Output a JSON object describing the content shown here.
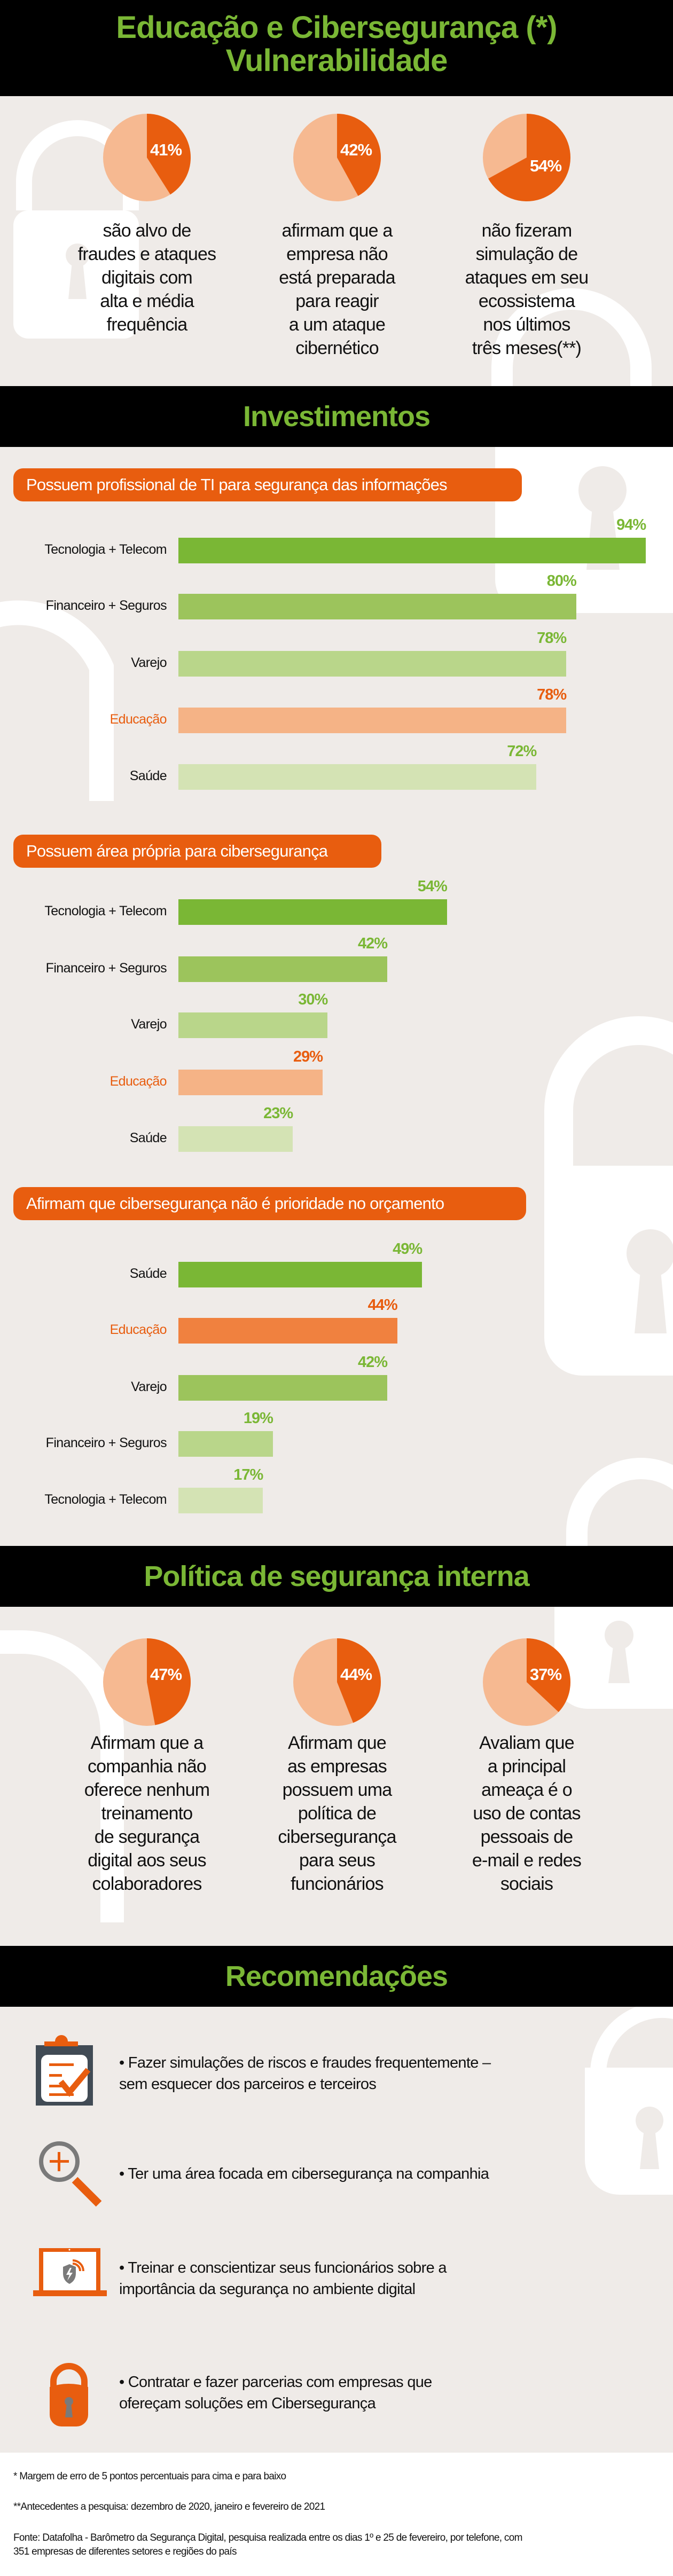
{
  "header": {
    "title_line1": "Educação e Cibersegurança (*)",
    "title_line2": "Vulnerabilidade"
  },
  "colors": {
    "background": "#efebe8",
    "band": "#000000",
    "band_text": "#7ab735",
    "accent_orange": "#e85d0f",
    "pie_light": "#f6b991",
    "bar_shades": [
      "#7ab735",
      "#9cc45c",
      "#b9d68a",
      "#d4e3b4"
    ],
    "education_bar_light": "#f5b386",
    "education_bar_dark": "#f0813f"
  },
  "vulnerabilidade": {
    "stats": [
      {
        "value": 41,
        "label": "41%",
        "text": [
          "são alvo de",
          "fraudes e ataques",
          "digitais com",
          "alta e média",
          "frequência"
        ]
      },
      {
        "value": 42,
        "label": "42%",
        "text": [
          "afirmam que a",
          "empresa não",
          "está preparada",
          "para reagir",
          "a um ataque",
          "cibernético"
        ]
      },
      {
        "value": 54,
        "label": "54%",
        "text": [
          "não fizeram",
          "simulação de",
          "ataques em seu",
          "ecossistema",
          "nos últimos",
          "três meses(**)"
        ]
      }
    ]
  },
  "investimentos": {
    "title": "Investimentos"
  },
  "chart_data": [
    {
      "type": "bar",
      "orientation": "horizontal",
      "title": "Possuem profissional de TI para segurança das informações",
      "categories": [
        "Tecnologia + Telecom",
        "Financeiro + Seguros",
        "Varejo",
        "Educação",
        "Saúde"
      ],
      "values": [
        94,
        80,
        78,
        78,
        72
      ],
      "value_labels": [
        "94%",
        "80%",
        "78%",
        "78%",
        "72%"
      ],
      "highlight": "Educação",
      "unit": "%",
      "xlim": [
        0,
        100
      ]
    },
    {
      "type": "bar",
      "orientation": "horizontal",
      "title": "Possuem área própria para cibersegurança",
      "categories": [
        "Tecnologia + Telecom",
        "Financeiro + Seguros",
        "Varejo",
        "Educação",
        "Saúde"
      ],
      "values": [
        54,
        42,
        30,
        29,
        23
      ],
      "value_labels": [
        "54%",
        "42%",
        "30%",
        "29%",
        "23%"
      ],
      "highlight": "Educação",
      "unit": "%",
      "xlim": [
        0,
        100
      ]
    },
    {
      "type": "bar",
      "orientation": "horizontal",
      "title": "Afirmam que cibersegurança não é prioridade no orçamento",
      "categories": [
        "Saúde",
        "Educação",
        "Varejo",
        "Financeiro + Seguros",
        "Tecnologia + Telecom"
      ],
      "values": [
        49,
        44,
        42,
        19,
        17
      ],
      "value_labels": [
        "49%",
        "44%",
        "42%",
        "19%",
        "17%"
      ],
      "highlight": "Educação",
      "unit": "%",
      "xlim": [
        0,
        100
      ]
    }
  ],
  "politica": {
    "title": "Política de segurança interna",
    "stats": [
      {
        "value": 47,
        "label": "47%",
        "text": [
          "Afirmam que a",
          "companhia não",
          "oferece nenhum",
          "treinamento",
          "de segurança",
          "digital aos seus",
          "colaboradores"
        ]
      },
      {
        "value": 44,
        "label": "44%",
        "text": [
          "Afirmam que",
          "as empresas",
          "possuem uma",
          "política de",
          "cibersegurança",
          "para seus",
          "funcionários"
        ]
      },
      {
        "value": 37,
        "label": "37%",
        "text": [
          "Avaliam que",
          "a principal",
          "ameaça é o",
          "uso de contas",
          "pessoais de",
          "e-mail e redes",
          "sociais"
        ]
      }
    ]
  },
  "recomendacoes": {
    "title": "Recomendações",
    "items": [
      {
        "icon": "clipboard-check-icon",
        "lines": [
          "• Fazer simulações de riscos e fraudes frequentemente –",
          "sem esquecer dos parceiros e terceiros"
        ]
      },
      {
        "icon": "magnifier-plus-icon",
        "lines": [
          "• Ter uma área focada em cibersegurança na companhia"
        ]
      },
      {
        "icon": "laptop-shield-icon",
        "lines": [
          "• Treinar e conscientizar seus funcionários sobre a",
          "importância da segurança no ambiente digital"
        ]
      },
      {
        "icon": "padlock-icon",
        "lines": [
          "• Contratar e fazer parcerias com empresas que",
          "ofereçam soluções em Cibersegurança"
        ]
      }
    ]
  },
  "footnotes": {
    "margin": "* Margem de erro de 5 pontos percentuais para cima e para baixo",
    "antecedentes": "**Antecedentes a pesquisa: dezembro de 2020, janeiro e fevereiro de 2021",
    "fonte_line1": "Fonte: Datafolha - Barômetro da Segurança Digital, pesquisa realizada entre os dias 1º e 25 de fevereiro, por telefone, com",
    "fonte_line2": "351 empresas de diferentes setores e regiões do país"
  }
}
